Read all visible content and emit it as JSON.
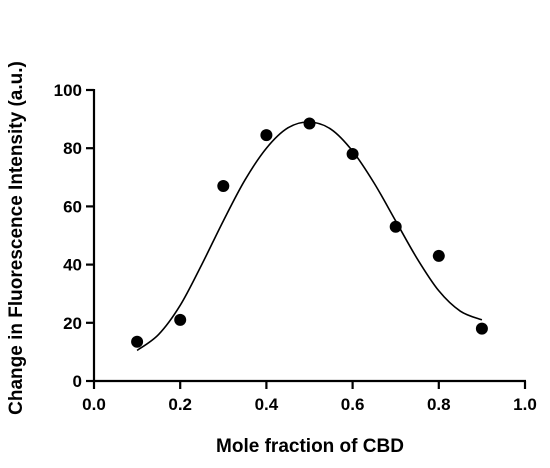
{
  "chart_data": {
    "type": "scatter",
    "title": "",
    "xlabel": "Mole fraction of CBD",
    "ylabel": "Change in Fluorescence Intensity (a.u.)",
    "xlim": [
      0.0,
      1.0
    ],
    "ylim": [
      0,
      100
    ],
    "x_ticks": [
      0.0,
      0.2,
      0.4,
      0.6,
      0.8,
      1.0
    ],
    "x_tick_labels": [
      "0.0",
      "0.2",
      "0.4",
      "0.6",
      "0.8",
      "1.0"
    ],
    "y_ticks": [
      0,
      20,
      40,
      60,
      80,
      100
    ],
    "y_tick_labels": [
      "0",
      "20",
      "40",
      "60",
      "80",
      "100"
    ],
    "grid": false,
    "legend": "none",
    "marker_color": "#000000",
    "series": [
      {
        "kind": "points",
        "x": [
          0.1,
          0.2,
          0.3,
          0.4,
          0.5,
          0.6,
          0.7,
          0.8,
          0.9
        ],
        "y": [
          13.5,
          21,
          67,
          84.5,
          88.5,
          78,
          53,
          43,
          18
        ]
      },
      {
        "kind": "fit-curve",
        "x": [
          0.1,
          0.15,
          0.2,
          0.25,
          0.3,
          0.35,
          0.4,
          0.45,
          0.5,
          0.55,
          0.6,
          0.65,
          0.7,
          0.75,
          0.8,
          0.85,
          0.9
        ],
        "y": [
          10.5,
          16,
          26,
          40,
          55,
          69,
          80,
          87,
          89,
          86.5,
          79,
          68,
          55,
          42,
          31,
          24,
          21
        ]
      }
    ]
  }
}
